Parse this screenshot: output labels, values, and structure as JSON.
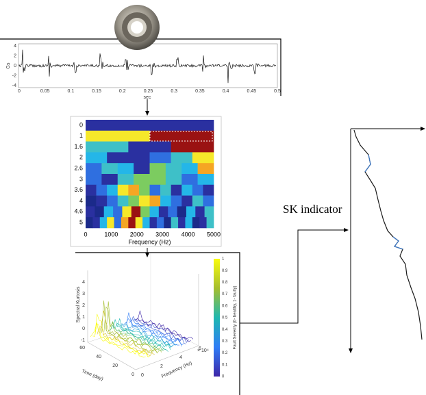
{
  "waveform": {
    "y_label": "Gs",
    "y_ticks": [
      "4",
      "2",
      "0",
      "-2",
      "-4"
    ],
    "x_ticks": [
      "0",
      "0.05",
      "0.1",
      "0.15",
      "0.2",
      "0.25",
      "0.3",
      "0.35",
      "0.4",
      "0.45",
      "0.5"
    ],
    "x_label": "sec"
  },
  "kurtogram": {
    "y_ticks": [
      "0",
      "1",
      "1.6",
      "2",
      "2.6",
      "3",
      "3.6",
      "4",
      "4.6",
      "5"
    ],
    "x_ticks": [
      "0",
      "1000",
      "2000",
      "3000",
      "4000",
      "5000"
    ],
    "x_label": "Frequency (Hz)"
  },
  "sk_3d": {
    "z_label": "Spectral Kurtosis",
    "z_ticks": [
      "4",
      "3",
      "2",
      "1",
      "0",
      "-1"
    ],
    "time_label": "Time (day)",
    "time_ticks": [
      "60",
      "40",
      "20",
      "0"
    ],
    "freq_label": "Frequency (Hz)",
    "freq_exponent": "× 10⁴",
    "freq_ticks": [
      "0",
      "2",
      "4",
      "6"
    ],
    "colorbar_label": "Fault Severity (0- healthy, 1- faulty)",
    "colorbar_ticks": [
      "0",
      "0.1",
      "0.2",
      "0.3",
      "0.4",
      "0.5",
      "0.6",
      "0.7",
      "0.8",
      "0.9",
      "1"
    ]
  },
  "sk_indicator": {
    "label": "SK indicator"
  }
}
